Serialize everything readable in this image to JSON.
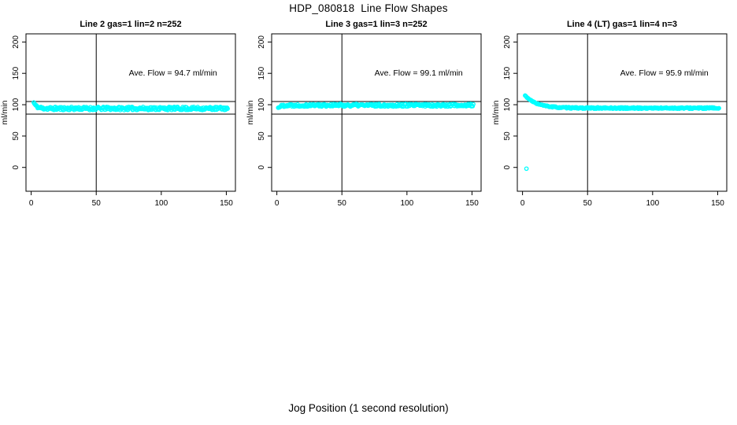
{
  "page": {
    "title": "HDP_080818  Line Flow Shapes",
    "xlabel": "Jog Position (1 second resolution)",
    "background": "#ffffff",
    "axis_color": "#000000"
  },
  "chart_data": [
    {
      "type": "scatter",
      "title": "Line 2 gas=1 lin=2 n=252",
      "ylabel": "ml/min",
      "annotation": "Ave. Flow =  94.7  ml/min",
      "ave_flow_ml_min": 94.7,
      "n_points": 252,
      "point_color": "#00ffff",
      "xlim": [
        -4,
        157
      ],
      "ylim": [
        -38,
        213
      ],
      "xticks": [
        0,
        50,
        100,
        150
      ],
      "yticks": [
        0,
        50,
        100,
        150,
        200
      ],
      "grid": false,
      "vline_x": 50,
      "hlines": [
        105,
        85
      ],
      "annotation_pos": [
        109,
        150
      ],
      "series": {
        "name": "flow",
        "x_start": 2,
        "x_end": 151,
        "x_step": 0.5,
        "y_start": 103.5,
        "y_flat": 94.0,
        "decay_tau": 2.2,
        "jitter": 2.6,
        "seed": 11,
        "extra_points": []
      }
    },
    {
      "type": "scatter",
      "title": "Line 3 gas=1 lin=3 n=252",
      "ylabel": "ml/min",
      "annotation": "Ave. Flow =  99.1  ml/min",
      "ave_flow_ml_min": 99.1,
      "n_points": 252,
      "point_color": "#00ffff",
      "xlim": [
        -4,
        157
      ],
      "ylim": [
        -38,
        213
      ],
      "xticks": [
        0,
        50,
        100,
        150
      ],
      "yticks": [
        0,
        50,
        100,
        150,
        200
      ],
      "grid": false,
      "vline_x": 50,
      "hlines": [
        105,
        85
      ],
      "annotation_pos": [
        109,
        150
      ],
      "series": {
        "name": "flow",
        "x_start": 1,
        "x_end": 151,
        "x_step": 0.5,
        "y_start": 95.0,
        "y_flat": 99.2,
        "decay_tau": 2.0,
        "jitter": 2.2,
        "seed": 22,
        "extra_points": []
      }
    },
    {
      "type": "scatter",
      "title": "Line 4 (LT) gas=1 lin=4 n=3",
      "ylabel": "ml/min",
      "annotation": "Ave. Flow =  95.9  ml/min",
      "ave_flow_ml_min": 95.9,
      "n_points": 3,
      "point_color": "#00ffff",
      "xlim": [
        -4,
        157
      ],
      "ylim": [
        -38,
        213
      ],
      "xticks": [
        0,
        50,
        100,
        150
      ],
      "yticks": [
        0,
        50,
        100,
        150,
        200
      ],
      "grid": false,
      "vline_x": 50,
      "hlines": [
        105,
        85
      ],
      "annotation_pos": [
        109,
        150
      ],
      "series": {
        "name": "flow",
        "x_start": 2,
        "x_end": 151,
        "x_step": 0.5,
        "y_start": 114.6,
        "y_flat": 94.6,
        "decay_tau": 9.0,
        "jitter": 1.1,
        "seed": 33,
        "extra_points": [
          [
            3,
            -2
          ]
        ]
      }
    }
  ]
}
